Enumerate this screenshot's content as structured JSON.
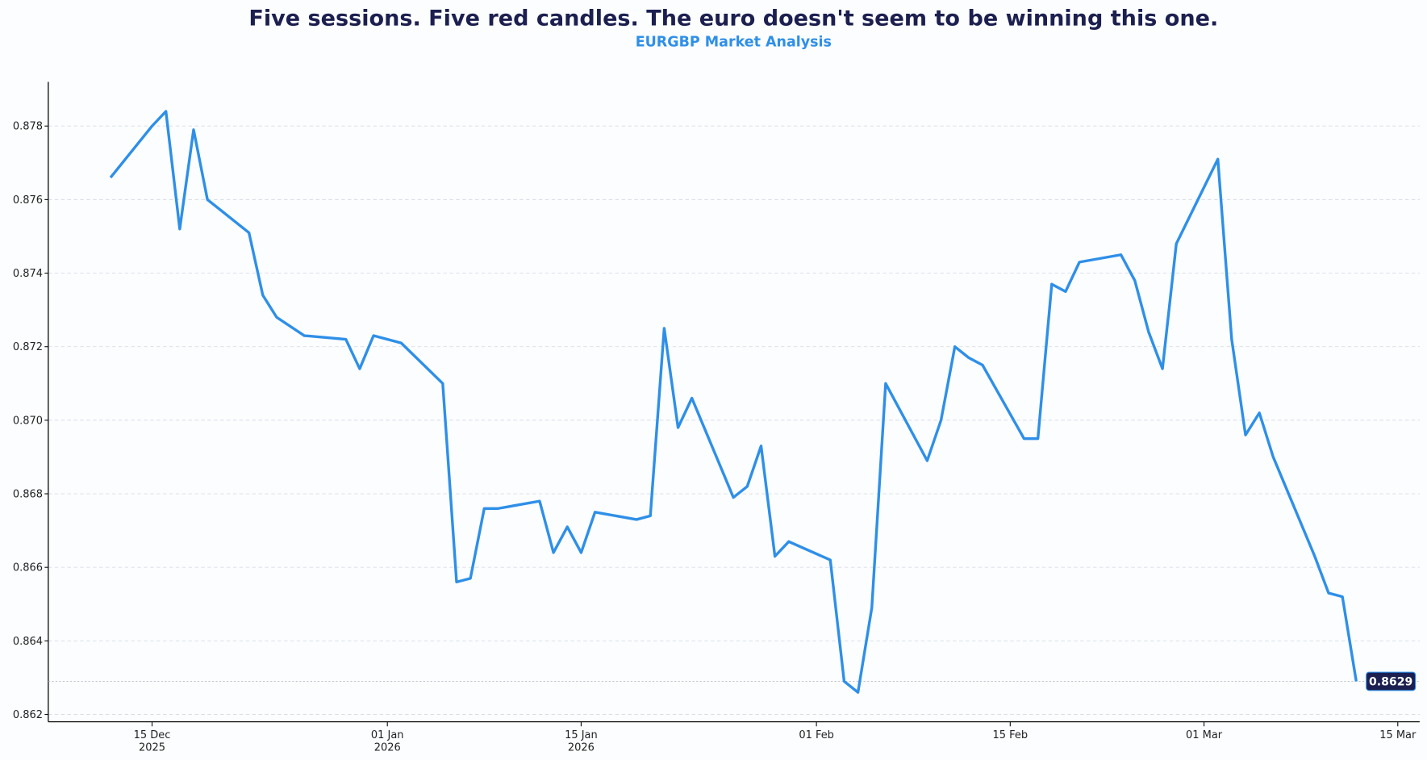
{
  "chart_data": {
    "type": "line",
    "title": "Five sessions. Five red candles. The euro doesn't seem to be winning this one.",
    "subtitle": "EURGBP Market Analysis",
    "xlabel": "",
    "ylabel": "",
    "xlim": [
      "2025-12-07T12:00:00",
      "2026-03-16T14:00:00"
    ],
    "ylim": [
      0.8618,
      0.8792
    ],
    "grid": "y-dashed",
    "line_color": "#2e8fe8",
    "badge_color": "#1c1f4f",
    "last_value_label": "0.8629",
    "y_ticks": [
      {
        "value": 0.862,
        "label": "0.862"
      },
      {
        "value": 0.864,
        "label": "0.864"
      },
      {
        "value": 0.866,
        "label": "0.866"
      },
      {
        "value": 0.868,
        "label": "0.868"
      },
      {
        "value": 0.87,
        "label": "0.870"
      },
      {
        "value": 0.872,
        "label": "0.872"
      },
      {
        "value": 0.874,
        "label": "0.874"
      },
      {
        "value": 0.876,
        "label": "0.876"
      },
      {
        "value": 0.878,
        "label": "0.878"
      }
    ],
    "x_ticks": [
      {
        "date": "2025-12-15",
        "label": "15 Dec",
        "label2": "2025"
      },
      {
        "date": "2026-01-01",
        "label": "01 Jan",
        "label2": "2026"
      },
      {
        "date": "2026-01-15",
        "label": "15 Jan",
        "label2": "2026"
      },
      {
        "date": "2026-02-01",
        "label": "01 Feb",
        "label2": ""
      },
      {
        "date": "2026-02-15",
        "label": "15 Feb",
        "label2": ""
      },
      {
        "date": "2026-03-01",
        "label": "01 Mar",
        "label2": ""
      },
      {
        "date": "2026-03-15",
        "label": "15 Mar",
        "label2": ""
      }
    ],
    "x": [
      "2025-12-12",
      "2025-12-15",
      "2025-12-16",
      "2025-12-17",
      "2025-12-18",
      "2025-12-19",
      "2025-12-22",
      "2025-12-23",
      "2025-12-24",
      "2025-12-26",
      "2025-12-29",
      "2025-12-30",
      "2025-12-31",
      "2026-01-02",
      "2026-01-05",
      "2026-01-06",
      "2026-01-07",
      "2026-01-08",
      "2026-01-09",
      "2026-01-12",
      "2026-01-13",
      "2026-01-14",
      "2026-01-15",
      "2026-01-16",
      "2026-01-19",
      "2026-01-20",
      "2026-01-21",
      "2026-01-22",
      "2026-01-23",
      "2026-01-26",
      "2026-01-27",
      "2026-01-28",
      "2026-01-29",
      "2026-01-30",
      "2026-02-02",
      "2026-02-03",
      "2026-02-04",
      "2026-02-05",
      "2026-02-06",
      "2026-02-09",
      "2026-02-10",
      "2026-02-11",
      "2026-02-12",
      "2026-02-13",
      "2026-02-16",
      "2026-02-17",
      "2026-02-18",
      "2026-02-19",
      "2026-02-20",
      "2026-02-23",
      "2026-02-24",
      "2026-02-25",
      "2026-02-26",
      "2026-02-27",
      "2026-03-02",
      "2026-03-03",
      "2026-03-04",
      "2026-03-05",
      "2026-03-06",
      "2026-03-09",
      "2026-03-10",
      "2026-03-11",
      "2026-03-12"
    ],
    "values": [
      0.8766,
      0.878,
      0.8784,
      0.8752,
      0.8779,
      0.876,
      0.8751,
      0.8734,
      0.8728,
      0.8723,
      0.8722,
      0.8714,
      0.8723,
      0.8721,
      0.871,
      0.8656,
      0.8657,
      0.8676,
      0.8676,
      0.8678,
      0.8664,
      0.8671,
      0.8664,
      0.8675,
      0.8673,
      0.8674,
      0.8725,
      0.8698,
      0.8706,
      0.8679,
      0.8682,
      0.8693,
      0.8663,
      0.8667,
      0.8662,
      0.8629,
      0.8626,
      0.8649,
      0.871,
      0.8689,
      0.87,
      0.872,
      0.8717,
      0.8715,
      0.8695,
      0.8695,
      0.8737,
      0.8735,
      0.8743,
      0.8745,
      0.8738,
      0.8724,
      0.8714,
      0.8748,
      0.8771,
      0.8722,
      0.8696,
      0.8702,
      0.869,
      0.8663,
      0.8653,
      0.8652,
      0.8629
    ]
  }
}
